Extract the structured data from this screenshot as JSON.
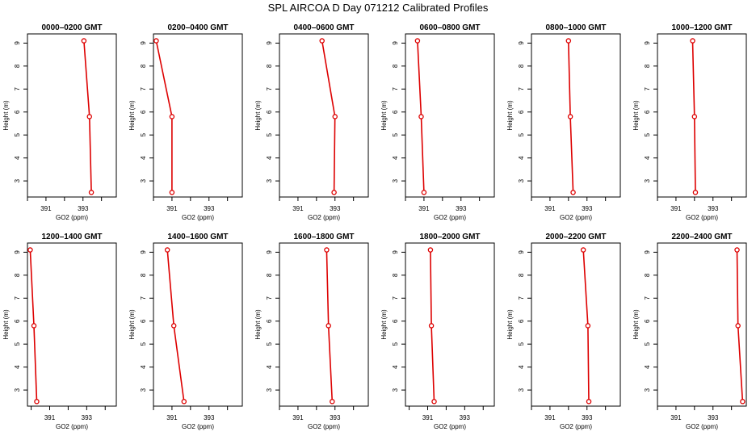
{
  "title": "SPL AIRCOA D  Day 071212  Calibrated Profiles",
  "colors": {
    "series": "#dd0000",
    "axis": "#000000",
    "background": "#ffffff"
  },
  "chart_data": [
    {
      "type": "line",
      "title": "0000–0200 GMT",
      "xlabel": "GO2 (ppm)",
      "ylabel": "Height (m)",
      "xticks": [
        "391",
        "393"
      ],
      "yticks": [
        "3",
        "4",
        "5",
        "6",
        "7",
        "8",
        "9"
      ],
      "xlim": [
        390,
        394.8
      ],
      "ylim": [
        2.3,
        9.4
      ],
      "x": [
        393.05,
        393.35,
        393.45
      ],
      "y": [
        9.1,
        5.8,
        2.5
      ]
    },
    {
      "type": "line",
      "title": "0200–0400 GMT",
      "xlabel": "GO2 (ppm)",
      "ylabel": "Height (m)",
      "xticks": [
        "391",
        "393"
      ],
      "yticks": [
        "3",
        "4",
        "5",
        "6",
        "7",
        "8",
        "9"
      ],
      "xlim": [
        390,
        394.8
      ],
      "ylim": [
        2.3,
        9.4
      ],
      "x": [
        390.15,
        391.0,
        391.0
      ],
      "y": [
        9.1,
        5.8,
        2.5
      ]
    },
    {
      "type": "line",
      "title": "0400–0600 GMT",
      "xlabel": "GO2 (ppm)",
      "ylabel": "Height (m)",
      "xticks": [
        "391",
        "393"
      ],
      "yticks": [
        "3",
        "4",
        "5",
        "6",
        "7",
        "8",
        "9"
      ],
      "xlim": [
        390,
        394.8
      ],
      "ylim": [
        2.3,
        9.4
      ],
      "x": [
        392.3,
        393.0,
        392.95
      ],
      "y": [
        9.1,
        5.8,
        2.5
      ]
    },
    {
      "type": "line",
      "title": "0600–0800 GMT",
      "xlabel": "GO2 (ppm)",
      "ylabel": "Height (m)",
      "xticks": [
        "391",
        "393"
      ],
      "yticks": [
        "3",
        "4",
        "5",
        "6",
        "7",
        "8",
        "9"
      ],
      "xlim": [
        390,
        394.8
      ],
      "ylim": [
        2.3,
        9.4
      ],
      "x": [
        390.65,
        390.85,
        391.0
      ],
      "y": [
        9.1,
        5.8,
        2.5
      ]
    },
    {
      "type": "line",
      "title": "0800–1000 GMT",
      "xlabel": "GO2 (ppm)",
      "ylabel": "Height (m)",
      "xticks": [
        "391",
        "393"
      ],
      "yticks": [
        "3",
        "4",
        "5",
        "6",
        "7",
        "8",
        "9"
      ],
      "xlim": [
        390,
        394.8
      ],
      "ylim": [
        2.3,
        9.4
      ],
      "x": [
        392.0,
        392.1,
        392.25
      ],
      "y": [
        9.1,
        5.8,
        2.5
      ]
    },
    {
      "type": "line",
      "title": "1000–1200 GMT",
      "xlabel": "GO2 (ppm)",
      "ylabel": "Height (m)",
      "xticks": [
        "391",
        "393"
      ],
      "yticks": [
        "3",
        "4",
        "5",
        "6",
        "7",
        "8",
        "9"
      ],
      "xlim": [
        390,
        394.8
      ],
      "ylim": [
        2.3,
        9.4
      ],
      "x": [
        391.9,
        392.0,
        392.05
      ],
      "y": [
        9.1,
        5.8,
        2.5
      ]
    },
    {
      "type": "line",
      "title": "1200–1400 GMT",
      "xlabel": "GO2 (ppm)",
      "ylabel": "Height (m)",
      "xticks": [
        "391",
        "393"
      ],
      "yticks": [
        "3",
        "4",
        "5",
        "6",
        "7",
        "8",
        "9"
      ],
      "xlim": [
        389.8,
        394.6
      ],
      "ylim": [
        2.3,
        9.4
      ],
      "x": [
        389.95,
        390.15,
        390.3
      ],
      "y": [
        9.1,
        5.8,
        2.5
      ]
    },
    {
      "type": "line",
      "title": "1400–1600 GMT",
      "xlabel": "GO2 (ppm)",
      "ylabel": "Height (m)",
      "xticks": [
        "391",
        "393"
      ],
      "yticks": [
        "3",
        "4",
        "5",
        "6",
        "7",
        "8",
        "9"
      ],
      "xlim": [
        390,
        394.8
      ],
      "ylim": [
        2.3,
        9.4
      ],
      "x": [
        390.75,
        391.1,
        391.65
      ],
      "y": [
        9.1,
        5.8,
        2.5
      ]
    },
    {
      "type": "line",
      "title": "1600–1800 GMT",
      "xlabel": "GO2 (ppm)",
      "ylabel": "Height (m)",
      "xticks": [
        "391",
        "393"
      ],
      "yticks": [
        "3",
        "4",
        "5",
        "6",
        "7",
        "8",
        "9"
      ],
      "xlim": [
        390,
        394.8
      ],
      "ylim": [
        2.3,
        9.4
      ],
      "x": [
        392.55,
        392.65,
        392.85
      ],
      "y": [
        9.1,
        5.8,
        2.5
      ]
    },
    {
      "type": "line",
      "title": "1800–2000 GMT",
      "xlabel": "GO2 (ppm)",
      "ylabel": "Height (m)",
      "xticks": [
        "391",
        "393"
      ],
      "yticks": [
        "3",
        "4",
        "5",
        "6",
        "7",
        "8",
        "9"
      ],
      "xlim": [
        389.8,
        394.6
      ],
      "ylim": [
        2.3,
        9.4
      ],
      "x": [
        391.15,
        391.2,
        391.35
      ],
      "y": [
        9.1,
        5.8,
        2.5
      ]
    },
    {
      "type": "line",
      "title": "2000–2200 GMT",
      "xlabel": "GO2 (ppm)",
      "ylabel": "Height (m)",
      "xticks": [
        "391",
        "393"
      ],
      "yticks": [
        "3",
        "4",
        "5",
        "6",
        "7",
        "8",
        "9"
      ],
      "xlim": [
        390,
        394.8
      ],
      "ylim": [
        2.3,
        9.4
      ],
      "x": [
        392.8,
        393.05,
        393.1
      ],
      "y": [
        9.1,
        5.8,
        2.5
      ]
    },
    {
      "type": "line",
      "title": "2200–2400 GMT",
      "xlabel": "GO2 (ppm)",
      "ylabel": "Height (m)",
      "xticks": [
        "391",
        "393"
      ],
      "yticks": [
        "3",
        "4",
        "5",
        "6",
        "7",
        "8",
        "9"
      ],
      "xlim": [
        390,
        394.8
      ],
      "ylim": [
        2.3,
        9.4
      ],
      "x": [
        394.3,
        394.35,
        394.6
      ],
      "y": [
        9.1,
        5.8,
        2.5
      ]
    }
  ]
}
